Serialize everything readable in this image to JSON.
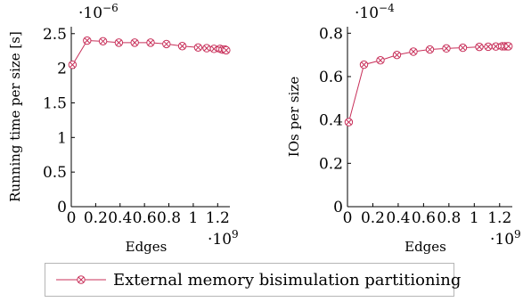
{
  "chart_data": [
    {
      "type": "line",
      "xlabel": "Edges",
      "x_multiplier": "·10^9",
      "ylabel": "Running time per size [s]",
      "y_multiplier": "·10^-6",
      "xlim": [
        0,
        1.3
      ],
      "ylim": [
        0,
        2.6
      ],
      "x_ticks": [
        0,
        0.2,
        0.4,
        0.6,
        0.8,
        1,
        1.2
      ],
      "x_tick_labels": [
        "0",
        "0.2",
        "0.4",
        "0.6",
        "0.8",
        "1",
        "1.2"
      ],
      "y_ticks": [
        0,
        0.5,
        1,
        1.5,
        2,
        2.5
      ],
      "y_tick_labels": [
        "0",
        "0.5",
        "1",
        "1.5",
        "2",
        "2.5"
      ],
      "grid": false,
      "series": [
        {
          "name": "External memory bisimulation partitioning",
          "color": "#c8305a",
          "marker": "circle-x",
          "x": [
            0.01,
            0.13,
            0.26,
            0.39,
            0.52,
            0.65,
            0.78,
            0.91,
            1.04,
            1.11,
            1.17,
            1.22,
            1.24,
            1.26,
            1.27
          ],
          "y": [
            2.05,
            2.4,
            2.39,
            2.37,
            2.37,
            2.37,
            2.35,
            2.32,
            2.3,
            2.29,
            2.28,
            2.28,
            2.27,
            2.27,
            2.26
          ]
        }
      ]
    },
    {
      "type": "line",
      "xlabel": "Edges",
      "x_multiplier": "·10^9",
      "ylabel": "IOs per size",
      "y_multiplier": "·10^-4",
      "xlim": [
        0,
        1.3
      ],
      "ylim": [
        0,
        0.83
      ],
      "x_ticks": [
        0,
        0.2,
        0.4,
        0.6,
        0.8,
        1,
        1.2
      ],
      "x_tick_labels": [
        "0",
        "0.2",
        "0.4",
        "0.6",
        "0.8",
        "1",
        "1.2"
      ],
      "y_ticks": [
        0,
        0.2,
        0.4,
        0.6,
        0.8
      ],
      "y_tick_labels": [
        "0",
        "0.2",
        "0.4",
        "0.6",
        "0.8"
      ],
      "grid": false,
      "series": [
        {
          "name": "External memory bisimulation partitioning",
          "color": "#c8305a",
          "marker": "circle-x",
          "x": [
            0.01,
            0.13,
            0.26,
            0.39,
            0.52,
            0.65,
            0.78,
            0.91,
            1.04,
            1.11,
            1.17,
            1.22,
            1.24,
            1.26,
            1.27
          ],
          "y": [
            0.39,
            0.655,
            0.675,
            0.7,
            0.715,
            0.725,
            0.73,
            0.733,
            0.737,
            0.738,
            0.739,
            0.74,
            0.74,
            0.74,
            0.74
          ]
        }
      ]
    }
  ],
  "legend": {
    "label": "External memory bisimulation partitioning",
    "color": "#c8305a"
  }
}
